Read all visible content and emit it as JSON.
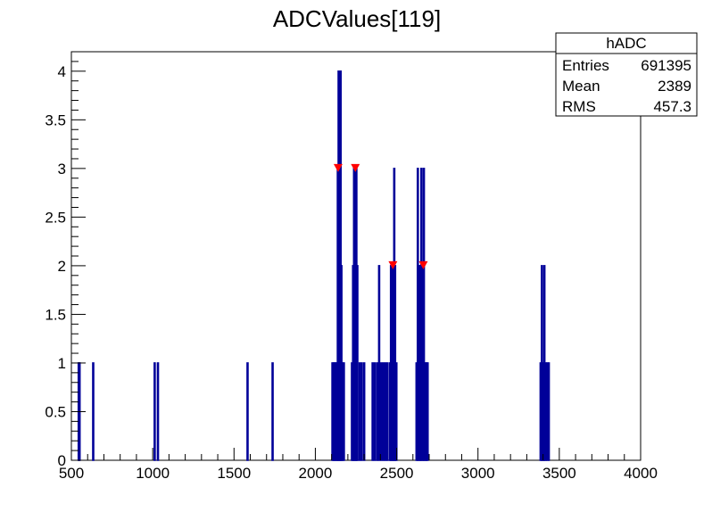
{
  "chart_data": {
    "type": "bar",
    "title": "ADCValues[119]",
    "xlabel": "",
    "ylabel": "",
    "xlim": [
      500,
      4000
    ],
    "ylim": [
      0,
      4.2
    ],
    "x_ticks": [
      "500",
      "1000",
      "1500",
      "2000",
      "2500",
      "3000",
      "3500",
      "4000"
    ],
    "y_ticks": [
      "0",
      "0.5",
      "1",
      "1.5",
      "2",
      "2.5",
      "3",
      "3.5",
      "4"
    ],
    "bar_color": "#000099",
    "marker_color": "#ff0000",
    "bins": [
      {
        "x": 545,
        "y": 1
      },
      {
        "x": 550,
        "y": 1
      },
      {
        "x": 634,
        "y": 1
      },
      {
        "x": 1012,
        "y": 1
      },
      {
        "x": 1032,
        "y": 1
      },
      {
        "x": 1583,
        "y": 1
      },
      {
        "x": 1737,
        "y": 1
      },
      {
        "x": 2105,
        "y": 1
      },
      {
        "x": 2112,
        "y": 1
      },
      {
        "x": 2118,
        "y": 1
      },
      {
        "x": 2125,
        "y": 1
      },
      {
        "x": 2132,
        "y": 1
      },
      {
        "x": 2138,
        "y": 3
      },
      {
        "x": 2143,
        "y": 4
      },
      {
        "x": 2150,
        "y": 2
      },
      {
        "x": 2155,
        "y": 4
      },
      {
        "x": 2160,
        "y": 2
      },
      {
        "x": 2167,
        "y": 1
      },
      {
        "x": 2175,
        "y": 1
      },
      {
        "x": 2225,
        "y": 1
      },
      {
        "x": 2232,
        "y": 2
      },
      {
        "x": 2238,
        "y": 3
      },
      {
        "x": 2245,
        "y": 3
      },
      {
        "x": 2252,
        "y": 3
      },
      {
        "x": 2258,
        "y": 2
      },
      {
        "x": 2272,
        "y": 1
      },
      {
        "x": 2285,
        "y": 1
      },
      {
        "x": 2300,
        "y": 1
      },
      {
        "x": 2352,
        "y": 1
      },
      {
        "x": 2365,
        "y": 1
      },
      {
        "x": 2380,
        "y": 1
      },
      {
        "x": 2392,
        "y": 2
      },
      {
        "x": 2405,
        "y": 1
      },
      {
        "x": 2418,
        "y": 1
      },
      {
        "x": 2430,
        "y": 1
      },
      {
        "x": 2442,
        "y": 1
      },
      {
        "x": 2458,
        "y": 1
      },
      {
        "x": 2465,
        "y": 2
      },
      {
        "x": 2472,
        "y": 2
      },
      {
        "x": 2478,
        "y": 2
      },
      {
        "x": 2485,
        "y": 3
      },
      {
        "x": 2490,
        "y": 2
      },
      {
        "x": 2498,
        "y": 1
      },
      {
        "x": 2622,
        "y": 1
      },
      {
        "x": 2630,
        "y": 3
      },
      {
        "x": 2637,
        "y": 2
      },
      {
        "x": 2645,
        "y": 2
      },
      {
        "x": 2652,
        "y": 3
      },
      {
        "x": 2660,
        "y": 2
      },
      {
        "x": 2667,
        "y": 3
      },
      {
        "x": 2675,
        "y": 1
      },
      {
        "x": 2682,
        "y": 1
      },
      {
        "x": 2690,
        "y": 1
      },
      {
        "x": 3385,
        "y": 1
      },
      {
        "x": 3393,
        "y": 2
      },
      {
        "x": 3400,
        "y": 1
      },
      {
        "x": 3408,
        "y": 2
      },
      {
        "x": 3415,
        "y": 1
      },
      {
        "x": 3425,
        "y": 1
      },
      {
        "x": 3435,
        "y": 1
      }
    ],
    "markers": [
      {
        "x": 2140,
        "y": 3
      },
      {
        "x": 2246,
        "y": 3
      },
      {
        "x": 2477,
        "y": 2
      },
      {
        "x": 2664,
        "y": 2
      }
    ]
  },
  "stats": {
    "name": "hADC",
    "rows": [
      {
        "label": "Entries",
        "value": "691395"
      },
      {
        "label": "Mean",
        "value": "2389"
      },
      {
        "label": "RMS",
        "value": "457.3"
      }
    ]
  }
}
